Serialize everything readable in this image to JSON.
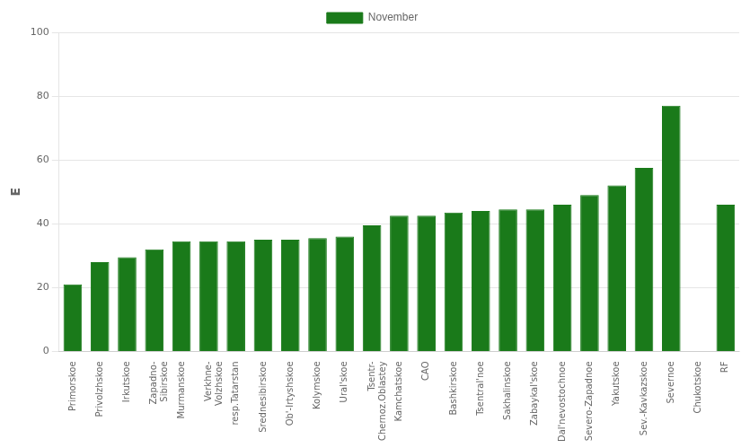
{
  "chart_data": {
    "type": "bar",
    "ylabel": "E",
    "categories": [
      "Primorskoe",
      "Privolzhskoe",
      "Irkutskoe",
      "Zapadno-\nSibirskoe",
      "Murmanskoe",
      "Verkhne-\nVolzhskoe",
      "resp.Tatarstan",
      "Srednesibirskoe",
      "Ob'-Irtyshskoe",
      "Kolymskoe",
      "Ural'skoe",
      "Tsentr-\nChernoz.Oblastey",
      "Kamchatskoe",
      "CAO",
      "Bashkirskoe",
      "Tsentral'noe",
      "Sakhalinskoe",
      "Zabaykal'skoe",
      "Dal'nevostochnoe",
      "Severo-Zapadnoe",
      "Yakutskoe",
      "Sev.-Kavkazskoe",
      "Severnoe",
      "Chukotskoe",
      "RF"
    ],
    "series": [
      {
        "name": "November",
        "color": "#1a7a1a",
        "values": [
          21,
          28,
          29.5,
          32,
          34.5,
          34.5,
          34.5,
          35,
          35,
          35.5,
          36,
          39.5,
          42.5,
          42.5,
          43.5,
          44,
          44.5,
          44.5,
          46,
          49,
          52,
          57.5,
          77,
          0,
          46
        ]
      }
    ],
    "ylim": [
      0,
      100
    ],
    "yticks": [
      0,
      20,
      40,
      60,
      80,
      100
    ],
    "grid": true,
    "legend": "top"
  }
}
